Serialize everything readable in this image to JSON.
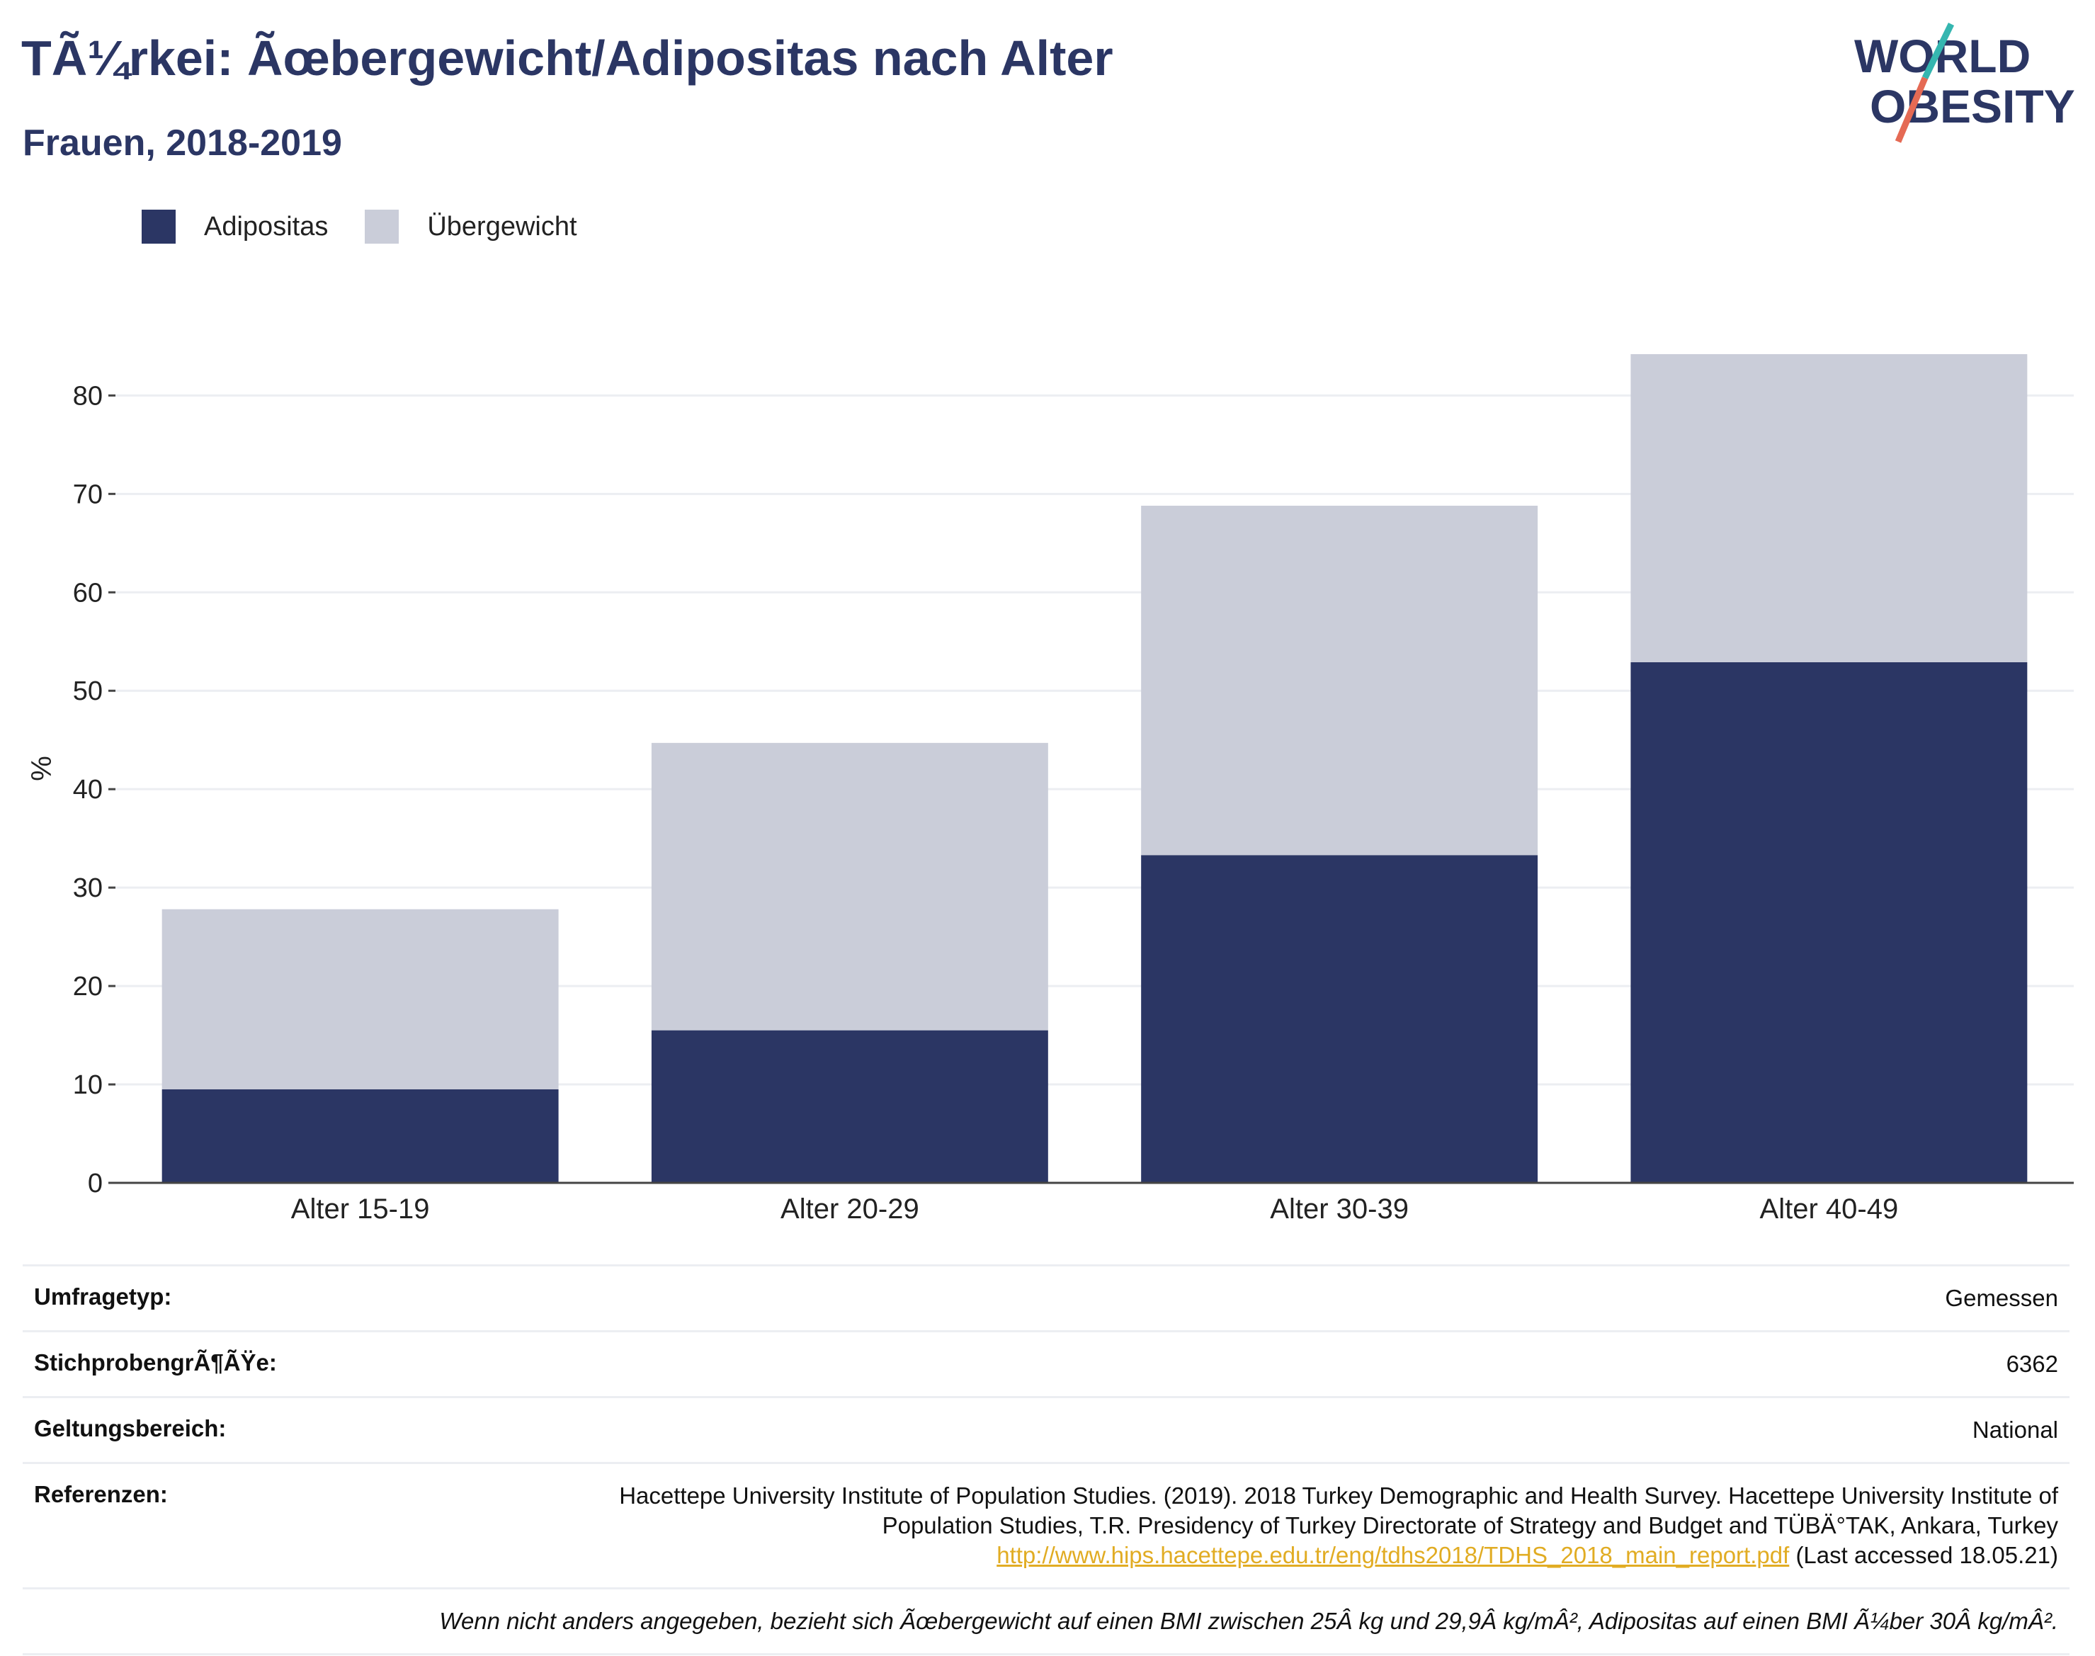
{
  "header": {
    "title": "TÃ¼rkei: Ãœbergewicht/Adipositas nach Alter",
    "subtitle": "Frauen, 2018-2019"
  },
  "logo": {
    "line1": "WORLD",
    "line2": "OBESITY"
  },
  "legend": {
    "items": [
      {
        "label": "Adipositas",
        "color": "#2b3664"
      },
      {
        "label": "Übergewicht",
        "color": "#cacdd9"
      }
    ]
  },
  "chart_data": {
    "type": "bar",
    "stacked": true,
    "categories": [
      "Alter 15-19",
      "Alter 20-29",
      "Alter 30-39",
      "Alter 40-49"
    ],
    "series": [
      {
        "name": "Adipositas",
        "color": "#2b3664",
        "values": [
          9.5,
          15.5,
          33.3,
          52.9
        ]
      },
      {
        "name": "Übergewicht",
        "color": "#cacdd9",
        "values": [
          18.3,
          29.2,
          35.5,
          31.3
        ]
      }
    ],
    "ylabel": "%",
    "ylim": [
      0,
      84.2
    ],
    "yticks": [
      0,
      10,
      20,
      30,
      40,
      50,
      60,
      70,
      80
    ],
    "grid": true,
    "legend_position": "top-left"
  },
  "info": {
    "survey_type_label": "Umfragetyp:",
    "survey_type_value": "Gemessen",
    "sample_label": "StichprobengrÃ¶ÃŸe:",
    "sample_value": "6362",
    "scope_label": "Geltungsbereich:",
    "scope_value": "National",
    "references_label": "Referenzen:",
    "reference_text": "Hacettepe University Institute of Population Studies. (2019). 2018 Turkey Demographic and Health Survey. Hacettepe University Institute of Population Studies, T.R. Presidency of Turkey Directorate of Strategy and Budget and TÜBÄ°TAK, Ankara, Turkey",
    "reference_link": "http://www.hips.hacettepe.edu.tr/eng/tdhs2018/TDHS_2018_main_report.pdf",
    "reference_accessed": "(Last accessed 18.05.21)",
    "note": "Wenn nicht anders angegeben, bezieht sich Ãœbergewicht auf einen BMI zwischen 25Â kg und 29,9Â kg/mÂ², Adipositas auf einen BMI Ã¼ber 30Â kg/mÂ²."
  }
}
